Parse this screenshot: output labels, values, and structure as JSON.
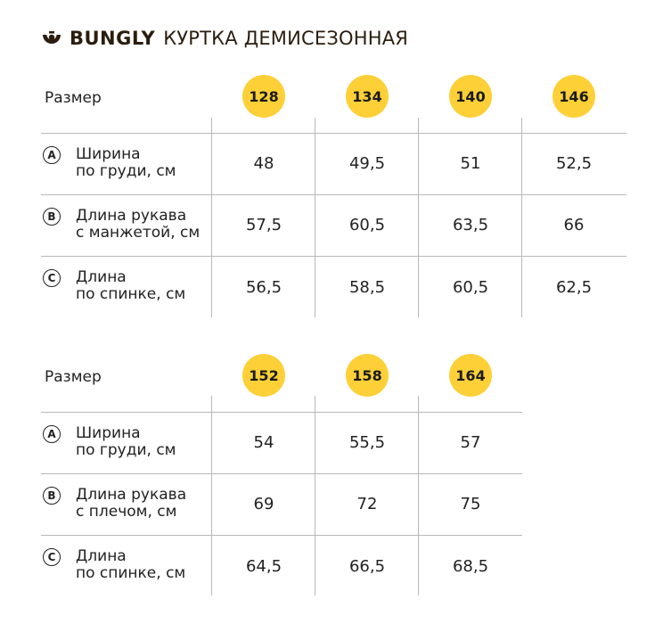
{
  "header": {
    "logo_icon": "bungly-logo-icon",
    "brand": "BUNGLY",
    "product": "КУРТКА ДЕМИСЕЗОННАЯ"
  },
  "colors": {
    "badge": "#fdd037",
    "text": "#222222",
    "lines": "#b8b8b8"
  },
  "tables": [
    {
      "size_label": "Размер",
      "sizes": [
        "128",
        "134",
        "140",
        "146"
      ],
      "rows": [
        {
          "letter": "A",
          "name_1": "Ширина",
          "name_2": "по груди, см",
          "values": [
            "48",
            "49,5",
            "51",
            "52,5"
          ]
        },
        {
          "letter": "B",
          "name_1": "Длина рукава",
          "name_2": "с манжетой, см",
          "values": [
            "57,5",
            "60,5",
            "63,5",
            "66"
          ]
        },
        {
          "letter": "C",
          "name_1": "Длина",
          "name_2": "по спинке, см",
          "values": [
            "56,5",
            "58,5",
            "60,5",
            "62,5"
          ]
        }
      ]
    },
    {
      "size_label": "Размер",
      "sizes": [
        "152",
        "158",
        "164"
      ],
      "rows": [
        {
          "letter": "A",
          "name_1": "Ширина",
          "name_2": "по груди, см",
          "values": [
            "54",
            "55,5",
            "57"
          ]
        },
        {
          "letter": "B",
          "name_1": "Длина рукава",
          "name_2": "с плечом, см",
          "values": [
            "69",
            "72",
            "75"
          ]
        },
        {
          "letter": "C",
          "name_1": "Длина",
          "name_2": "по спинке, см",
          "values": [
            "64,5",
            "66,5",
            "68,5"
          ]
        }
      ]
    }
  ]
}
